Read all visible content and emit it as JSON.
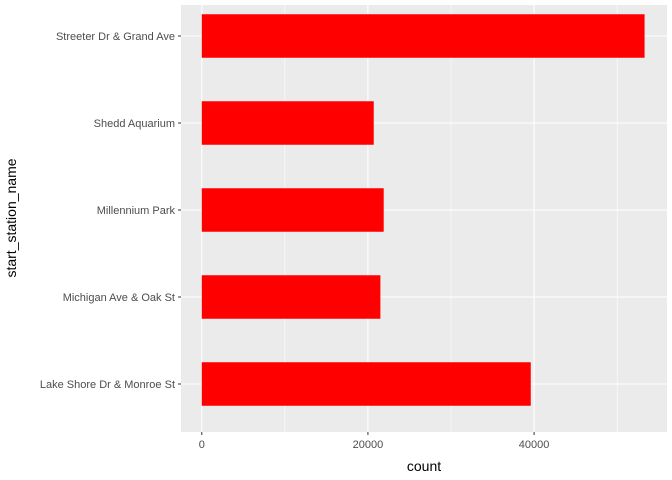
{
  "chart_data": {
    "type": "bar",
    "orientation": "horizontal",
    "categories": [
      "Lake Shore Dr & Monroe St",
      "Michigan Ave & Oak St",
      "Millennium Park",
      "Shedd Aquarium",
      "Streeter Dr & Grand Ave"
    ],
    "values": [
      39600,
      21500,
      21900,
      20700,
      53300
    ],
    "xlabel": "count",
    "ylabel": "start_station_name",
    "xlim": [
      -2500,
      56000
    ],
    "x_ticks": [
      0,
      20000,
      40000
    ],
    "x_tick_labels": [
      "0",
      "20000",
      "40000"
    ],
    "x_minor_ticks": [
      10000,
      30000,
      50000
    ],
    "grid": true,
    "colors": {
      "bar": "#ff0000",
      "panel": "#ebebeb",
      "grid": "#ffffff"
    }
  }
}
